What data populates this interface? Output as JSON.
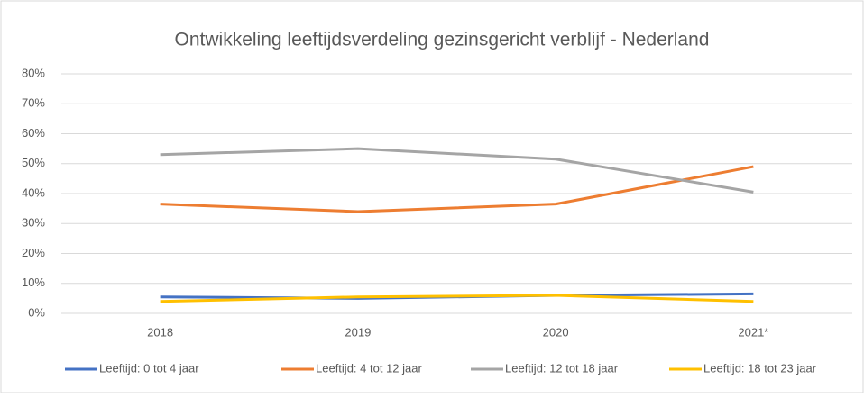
{
  "chart_data": {
    "type": "line",
    "title": "Ontwikkeling leeftijdsverdeling gezinsgericht verblijf - Nederland",
    "categories": [
      "2018",
      "2019",
      "2020",
      "2021*"
    ],
    "series": [
      {
        "name": "Leeftijd: 0 tot 4 jaar",
        "color": "#4472c4",
        "values": [
          5.5,
          5,
          6,
          6.5
        ]
      },
      {
        "name": "Leeftijd: 4 tot 12 jaar",
        "color": "#ed7d31",
        "values": [
          36.5,
          34,
          36.5,
          49
        ]
      },
      {
        "name": "Leeftijd: 12 tot 18 jaar",
        "color": "#a5a5a5",
        "values": [
          53,
          55,
          51.5,
          40.5
        ]
      },
      {
        "name": "Leeftijd: 18 tot 23 jaar",
        "color": "#ffc000",
        "values": [
          4,
          5.5,
          6,
          4
        ]
      }
    ],
    "ylim": [
      0,
      80
    ],
    "yticks": [
      {
        "value": 0,
        "label": "0%"
      },
      {
        "value": 10,
        "label": "10%"
      },
      {
        "value": 20,
        "label": "20%"
      },
      {
        "value": 30,
        "label": "30%"
      },
      {
        "value": 40,
        "label": "40%"
      },
      {
        "value": 50,
        "label": "50%"
      },
      {
        "value": 60,
        "label": "60%"
      },
      {
        "value": 70,
        "label": "70%"
      },
      {
        "value": 80,
        "label": "80%"
      }
    ],
    "grid": true,
    "legend": "bottom"
  }
}
